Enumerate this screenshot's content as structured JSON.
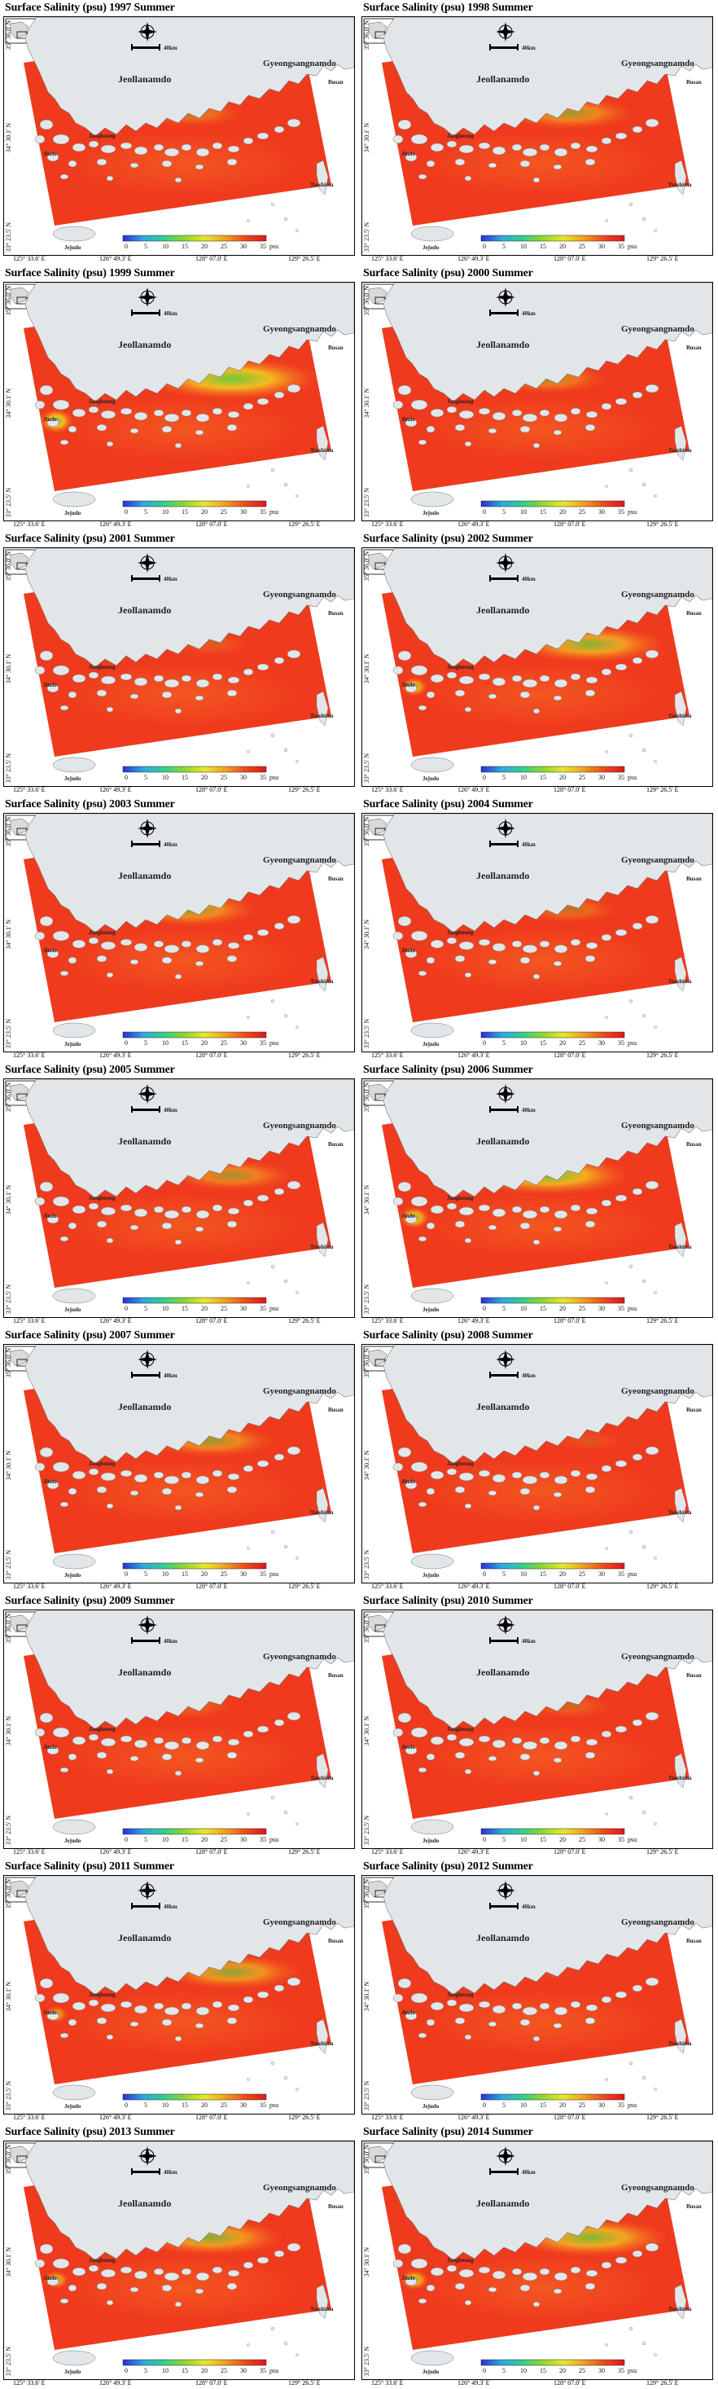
{
  "figure": {
    "panels": [
      {
        "title": "Surface Salinity (psu) 1997 Summer",
        "xticks": [
          "125° 33.6' E",
          "126° 49.3' E",
          "128° 07.0' E",
          "129° 26.5' E"
        ],
        "yticks": [
          "35° 36.0' N",
          "34° 30.1' N",
          "33° 23.5' N"
        ],
        "fresh": 0.35
      },
      {
        "title": "Surface Salinity (psu) 1998 Summer",
        "xticks": [
          "125° 33.6' E",
          "126° 49.3' E",
          "128° 07.0' E",
          "129° 26.5' E"
        ],
        "yticks": [
          "35° 36.0' N",
          "34° 30.1' N",
          "33° 23.5' N"
        ],
        "fresh": 0.55
      },
      {
        "title": "Surface Salinity (psu) 1999 Summer",
        "xticks": [
          "125° 33.6' E",
          "126° 49.3' E",
          "128° 07.0' E",
          "129° 26.5' E"
        ],
        "yticks": [
          "35° 36.0' N",
          "34° 30.1' N",
          "33° 23.5' N"
        ],
        "fresh": 0.95
      },
      {
        "title": "Surface Salinity (psu) 2000 Summer",
        "xticks": [
          "125° 33.6' E",
          "126° 49.3' E",
          "128° 07.0' E",
          "129° 26.5' E"
        ],
        "yticks": [
          "35° 36.0' N",
          "34° 30.1' N",
          "33° 23.5' N"
        ],
        "fresh": 0.45
      },
      {
        "title": "Surface Salinity (psu) 2001 Summer",
        "xticks": [
          "125° 33.6' E",
          "126° 49.3' E",
          "128° 07.0' E",
          "129° 26.5' E"
        ],
        "yticks": [
          "35° 36.0' N",
          "34° 30.1' N",
          "33° 23.5' N"
        ],
        "fresh": 0.15
      },
      {
        "title": "Surface Salinity (psu) 2002 Summer",
        "xticks": [
          "125° 33.6' E",
          "126° 49.3' E",
          "128° 07.0' E",
          "129° 26.5' E"
        ],
        "yticks": [
          "35° 36.0' N",
          "34° 30.1' N",
          "33° 23.5' N"
        ],
        "fresh": 0.75
      },
      {
        "title": "Surface Salinity (psu) 2003 Summer",
        "xticks": [
          "125° 33.6' E",
          "126° 49.3' E",
          "128° 07.0' E",
          "129° 26.5' E"
        ],
        "yticks": [
          "35° 36.0' N",
          "34° 30.1' N",
          "33° 23.5' N"
        ],
        "fresh": 0.6
      },
      {
        "title": "Surface Salinity (psu) 2004 Summer",
        "xticks": [
          "125° 33.6' E",
          "126° 49.3' E",
          "128° 07.0' E",
          "129° 26.5' E"
        ],
        "yticks": [
          "35° 36.0' N",
          "34° 30.1' N",
          "33° 23.5' N"
        ],
        "fresh": 0.3
      },
      {
        "title": "Surface Salinity (psu) 2005 Summer",
        "xticks": [
          "125° 33.6' E",
          "126° 49.3' E",
          "128° 07.0' E",
          "129° 26.5' E"
        ],
        "yticks": [
          "35° 36.0' N",
          "34° 30.1' N",
          "33° 23.5' N"
        ],
        "fresh": 0.5
      },
      {
        "title": "Surface Salinity (psu) 2006 Summer",
        "xticks": [
          "125° 33.6' E",
          "126° 49.3' E",
          "128° 07.0' E",
          "129° 26.5' E"
        ],
        "yticks": [
          "35° 36.0' N",
          "34° 30.1' N",
          "33° 23.5' N"
        ],
        "fresh": 0.85
      },
      {
        "title": "Surface Salinity (psu) 2007 Summer",
        "xticks": [
          "125° 33.6' E",
          "126° 49.3' E",
          "128° 07.0' E",
          "129° 26.5' E"
        ],
        "yticks": [
          "35° 36.0' N",
          "34° 30.1' N",
          "33° 23.5' N"
        ],
        "fresh": 0.55
      },
      {
        "title": "Surface Salinity (psu) 2008 Summer",
        "xticks": [
          "125° 33.6' E",
          "126° 49.3' E",
          "128° 07.0' E",
          "129° 26.5' E"
        ],
        "yticks": [
          "35° 36.0' N",
          "34° 30.1' N",
          "33° 23.5' N"
        ],
        "fresh": 0.1
      },
      {
        "title": "Surface Salinity (psu) 2009 Summer",
        "xticks": [
          "125° 33.6' E",
          "126° 49.3' E",
          "128° 07.0' E",
          "129° 26.5' E"
        ],
        "yticks": [
          "35° 36.0' N",
          "34° 30.1' N",
          "33° 23.5' N"
        ],
        "fresh": 0.2
      },
      {
        "title": "Surface Salinity (psu) 2010 Summer",
        "xticks": [
          "125° 33.6' E",
          "126° 49.3' E",
          "128° 07.0' E",
          "129° 26.5' E"
        ],
        "yticks": [
          "35° 36.0' N",
          "34° 30.1' N",
          "33° 23.5' N"
        ],
        "fresh": 0.2
      },
      {
        "title": "Surface Salinity (psu) 2011 Summer",
        "xticks": [
          "125° 33.6' E",
          "126° 49.3' E",
          "128° 07.0' E",
          "129° 26.5' E"
        ],
        "yticks": [
          "35° 36.0' N",
          "34° 30.1' N",
          "33° 23.5' N"
        ],
        "fresh": 0.65
      },
      {
        "title": "Surface Salinity (psu) 2012 Summer",
        "xticks": [
          "125° 33.6' E",
          "126° 49.3' E",
          "128° 07.0' E",
          "129° 26.5' E"
        ],
        "yticks": [
          "35° 36.0' N",
          "34° 30.1' N",
          "33° 23.5' N"
        ],
        "fresh": 0.05
      },
      {
        "title": "Surface Salinity (psu) 2013 Summer",
        "xticks": [
          "125° 33.6' E",
          "126° 49.3' E",
          "128° 07.0' E",
          "129° 26.5' E"
        ],
        "yticks": [
          "35° 36.0' N",
          "34° 30.1' N",
          "33° 23.5' N"
        ],
        "fresh": 0.7
      },
      {
        "title": "Surface Salinity (psu) 2014 Summer",
        "xticks": [
          "125° 33.6' E",
          "126° 49.3' E",
          "128° 07.0' E",
          "129° 26.5' E"
        ],
        "yticks": [
          "35° 36.0' N",
          "34° 30.1' N",
          "33° 23.5' N"
        ],
        "fresh": 0.8
      }
    ],
    "labels": {
      "jeollanamdo": "Jeollanamdo",
      "gyeongsangnamdo": "Gyeongsangnamdo",
      "busan": "Busan",
      "jindo": "Jindo",
      "jangheung": "Jangheung",
      "jejudo": "Jejudo",
      "tsushima": "Tsushima",
      "scale_unit": "40km"
    },
    "colorbar": {
      "ticks": [
        "0",
        "5",
        "10",
        "15",
        "20",
        "25",
        "30",
        "35"
      ],
      "unit": "psu",
      "stops": [
        "#2a2fd6",
        "#2fa8e0",
        "#2fd08c",
        "#8fd630",
        "#e8e82a",
        "#f0a020",
        "#ee4a1a",
        "#e0161a"
      ]
    },
    "colors": {
      "land": "#e3e6e8",
      "sea_high": "#ef3a1e",
      "sea_mid": "#f76a22",
      "fresh_mid": "#f5c020",
      "fresh_low": "#6cc83a"
    }
  }
}
